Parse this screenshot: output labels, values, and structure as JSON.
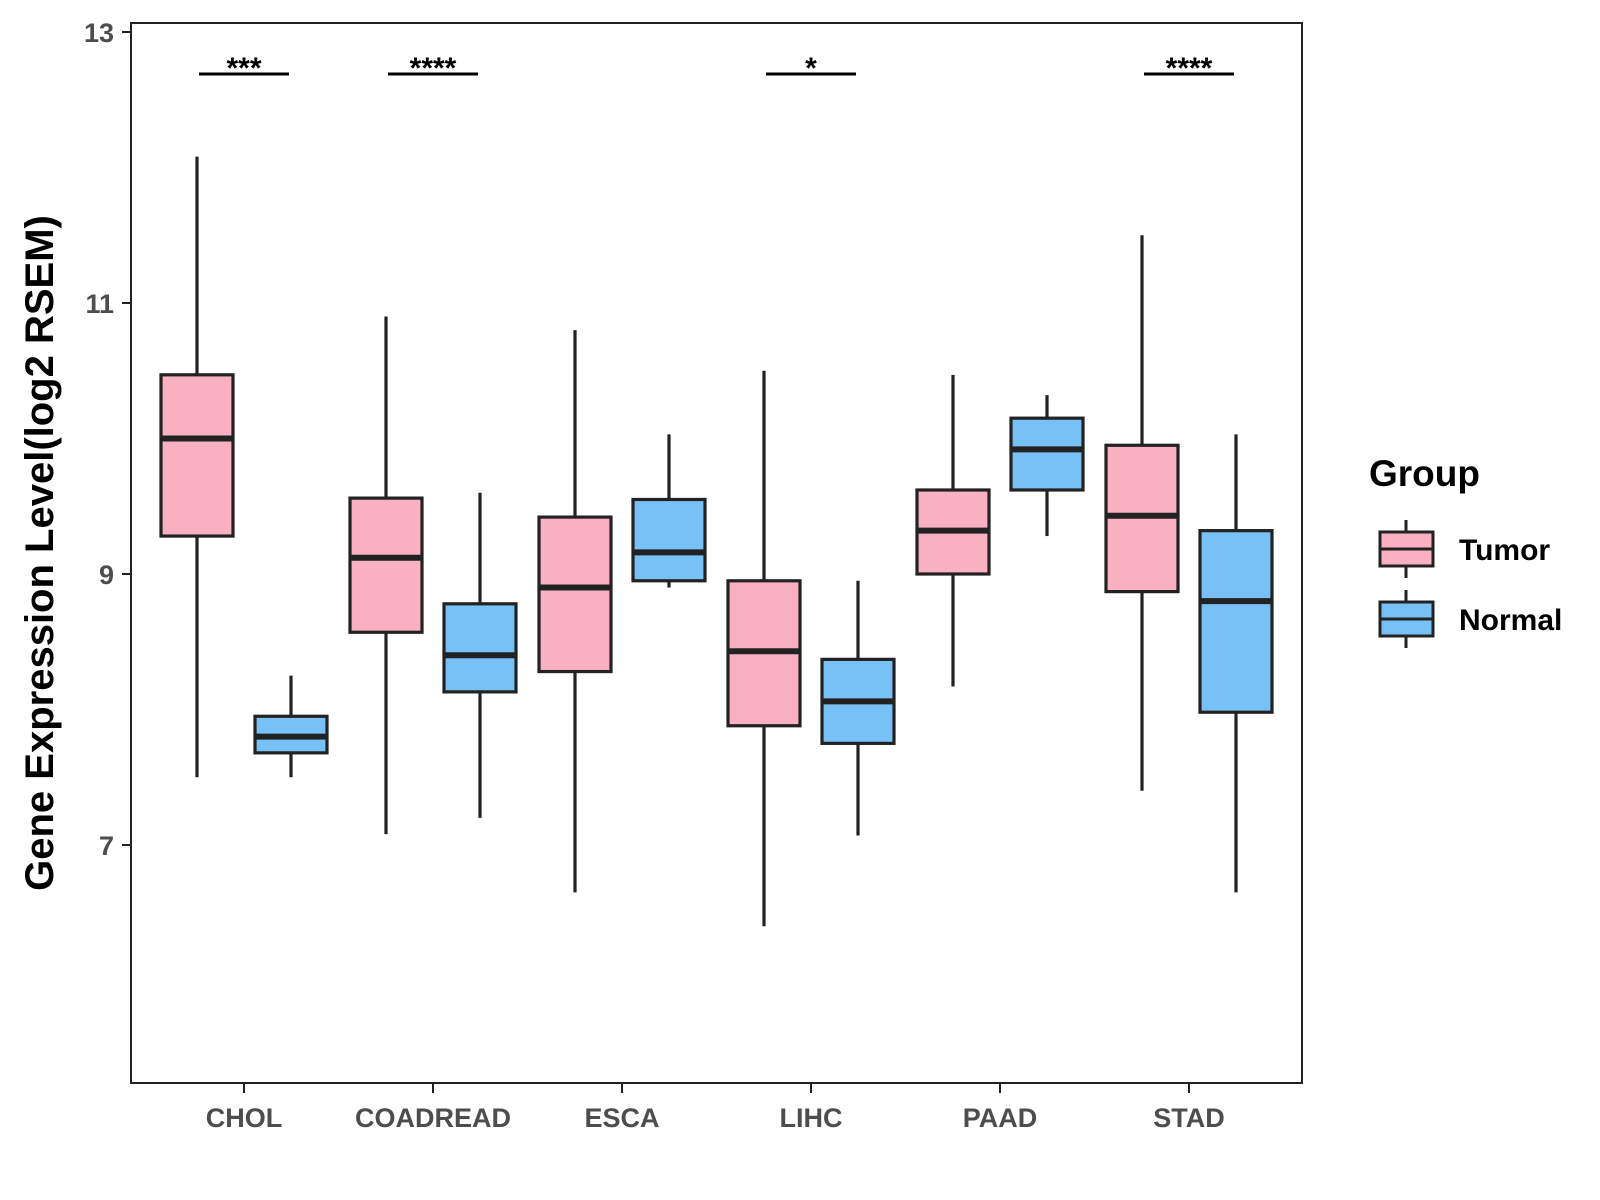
{
  "chart_data": {
    "type": "boxplot",
    "title": "",
    "xlabel": "",
    "ylabel": "Gene Expression Level(log2 RSEM)",
    "ylim": [
      5.25,
      13.05
    ],
    "yticks": [
      7,
      9,
      11,
      13
    ],
    "categories": [
      "CHOL",
      "COADREAD",
      "ESCA",
      "LIHC",
      "PAAD",
      "STAD"
    ],
    "legend": {
      "title": "Group",
      "position": "right",
      "entries": [
        {
          "name": "Tumor",
          "color": "#FAB0C3"
        },
        {
          "name": "Normal",
          "color": "#77C1F7"
        }
      ]
    },
    "series": [
      {
        "name": "Tumor",
        "color": "#FAB0C3",
        "boxes": [
          {
            "category": "CHOL",
            "min": 7.5,
            "q1": 9.28,
            "median": 10.0,
            "q3": 10.47,
            "max": 12.08
          },
          {
            "category": "COADREAD",
            "min": 7.08,
            "q1": 8.57,
            "median": 9.12,
            "q3": 9.56,
            "max": 10.9
          },
          {
            "category": "ESCA",
            "min": 6.65,
            "q1": 8.28,
            "median": 8.9,
            "q3": 9.42,
            "max": 10.8
          },
          {
            "category": "LIHC",
            "min": 6.4,
            "q1": 7.88,
            "median": 8.43,
            "q3": 8.95,
            "max": 10.5
          },
          {
            "category": "PAAD",
            "min": 8.17,
            "q1": 9.0,
            "median": 9.32,
            "q3": 9.62,
            "max": 10.47
          },
          {
            "category": "STAD",
            "min": 7.4,
            "q1": 8.87,
            "median": 9.43,
            "q3": 9.95,
            "max": 11.5
          }
        ]
      },
      {
        "name": "Normal",
        "color": "#77C1F7",
        "boxes": [
          {
            "category": "CHOL",
            "min": 7.5,
            "q1": 7.68,
            "median": 7.8,
            "q3": 7.95,
            "max": 8.25
          },
          {
            "category": "COADREAD",
            "min": 7.2,
            "q1": 8.13,
            "median": 8.4,
            "q3": 8.78,
            "max": 9.6
          },
          {
            "category": "ESCA",
            "min": 8.9,
            "q1": 8.95,
            "median": 9.16,
            "q3": 9.55,
            "max": 10.03
          },
          {
            "category": "LIHC",
            "min": 7.07,
            "q1": 7.75,
            "median": 8.06,
            "q3": 8.37,
            "max": 8.95
          },
          {
            "category": "PAAD",
            "min": 9.28,
            "q1": 9.62,
            "median": 9.92,
            "q3": 10.15,
            "max": 10.32
          },
          {
            "category": "STAD",
            "min": 6.65,
            "q1": 7.98,
            "median": 8.8,
            "q3": 9.32,
            "max": 10.03
          }
        ]
      }
    ],
    "significance": [
      {
        "category": "CHOL",
        "label": "***"
      },
      {
        "category": "COADREAD",
        "label": "****"
      },
      {
        "category": "ESCA",
        "label": ""
      },
      {
        "category": "LIHC",
        "label": "*"
      },
      {
        "category": "PAAD",
        "label": ""
      },
      {
        "category": "STAD",
        "label": "****"
      }
    ],
    "grid": false
  }
}
